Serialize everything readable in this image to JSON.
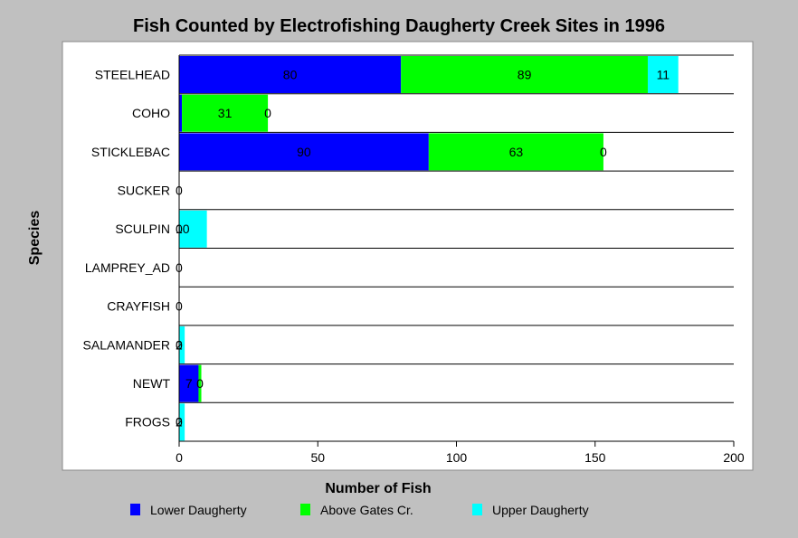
{
  "chart_data": {
    "type": "bar",
    "orientation": "horizontal",
    "stacked": true,
    "title": "Fish Counted by Electrofishing Daugherty Creek Sites in 1996",
    "xlabel": "Number of Fish",
    "ylabel": "Species",
    "xlim": [
      0,
      200
    ],
    "xticks": [
      0,
      50,
      100,
      150,
      200
    ],
    "categories": [
      "STEELHEAD",
      "COHO",
      "STICKLEBAC",
      "SUCKER",
      "SCULPIN",
      "LAMPREY_AD",
      "CRAYFISH",
      "SALAMANDER",
      "NEWT",
      "FROGS"
    ],
    "series": [
      {
        "name": "Lower Daugherty",
        "color": "#0000ff",
        "values": [
          80,
          1,
          90,
          0,
          0,
          0,
          0,
          0,
          7,
          0
        ]
      },
      {
        "name": "Above Gates Cr.",
        "color": "#00ff00",
        "values": [
          89,
          31,
          63,
          0,
          0,
          0,
          0,
          0,
          1,
          0
        ]
      },
      {
        "name": "Upper Daugherty",
        "color": "#00ffff",
        "values": [
          11,
          0,
          0,
          0,
          10,
          0,
          0,
          2,
          0,
          2
        ]
      }
    ],
    "data_labels": [
      [
        "80",
        "89",
        "11"
      ],
      [
        "",
        "31",
        "0"
      ],
      [
        "90",
        "63",
        "0"
      ],
      [
        "0",
        "",
        ""
      ],
      [
        "0",
        "10",
        ""
      ],
      [
        "0",
        "",
        ""
      ],
      [
        "0",
        "",
        ""
      ],
      [
        "0",
        "2",
        ""
      ],
      [
        "7",
        "0",
        ""
      ],
      [
        "0",
        "2",
        ""
      ]
    ],
    "grid": false,
    "legend_position": "bottom"
  }
}
